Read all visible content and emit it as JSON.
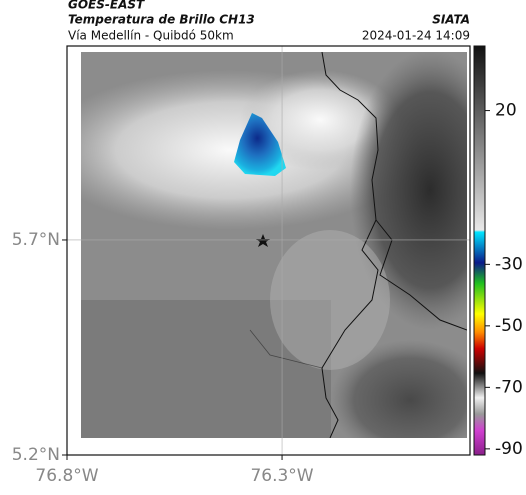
{
  "header": {
    "satellite": "GOES-EAST",
    "product": "Temperatura de Brillo CH13",
    "location": "Vía Medellín - Quibdó 50km",
    "agency": "SIATA",
    "datetime": "2024-01-24 14:09"
  },
  "map": {
    "lat_range": [
      5.2,
      6.151
    ],
    "lon_range": [
      -76.8,
      -75.863
    ],
    "lat_ticks": [
      {
        "value": 5.7,
        "label": "5.7°N"
      },
      {
        "value": 5.2,
        "label": "5.2°N"
      }
    ],
    "lon_ticks": [
      {
        "value": -76.8,
        "label": "76.8°W"
      },
      {
        "value": -76.3,
        "label": "76.3°W"
      }
    ]
  },
  "colorbar": {
    "range": [
      -92,
      41
    ],
    "ticks": [
      20,
      -30,
      -50,
      -70,
      -90
    ]
  }
}
